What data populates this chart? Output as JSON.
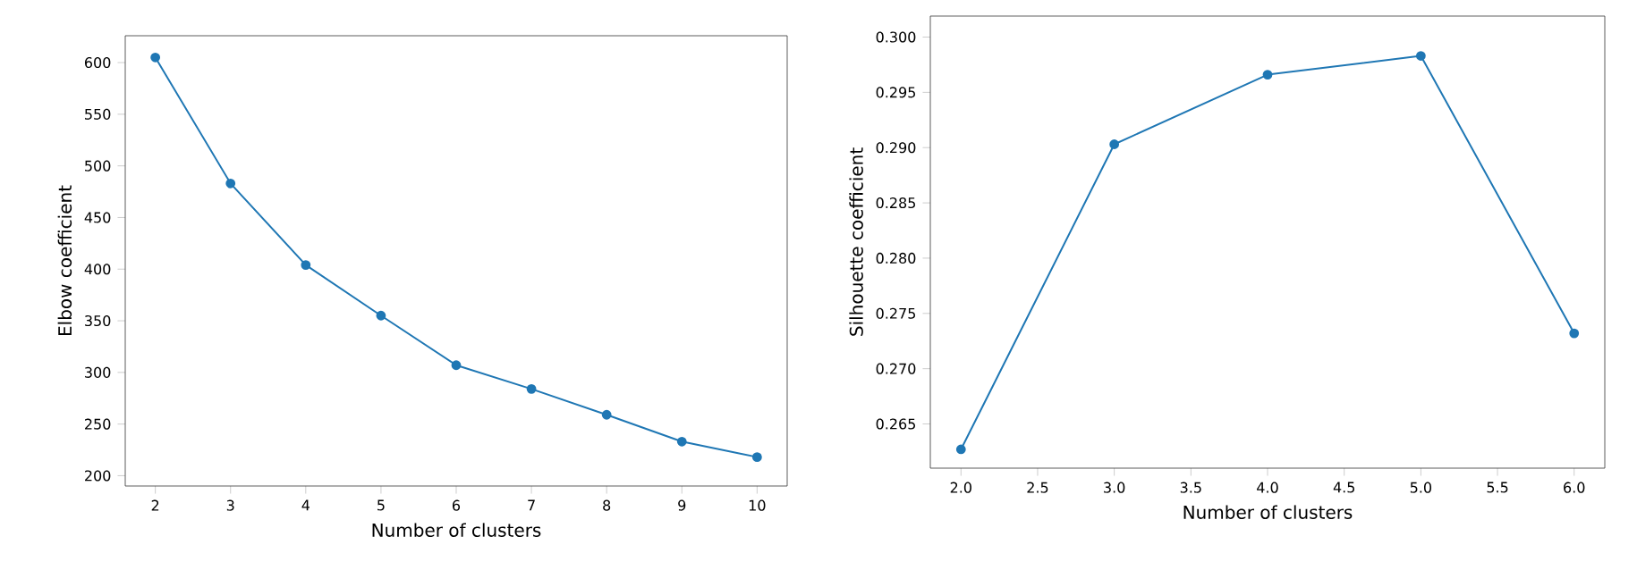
{
  "chart_data": [
    {
      "type": "line",
      "xlabel": "Number of clusters",
      "ylabel": "Elbow coefficient",
      "x": [
        2,
        3,
        4,
        5,
        6,
        7,
        8,
        9,
        10
      ],
      "series": [
        {
          "color": "#1f77b4",
          "values": [
            605,
            483,
            404,
            355,
            307,
            284,
            259,
            233,
            218
          ]
        }
      ],
      "xlim": [
        1.6,
        10.4
      ],
      "ylim": [
        190,
        626
      ],
      "xticks": [
        2,
        3,
        4,
        5,
        6,
        7,
        8,
        9,
        10
      ],
      "yticks": [
        200,
        250,
        300,
        350,
        400,
        450,
        500,
        550,
        600
      ],
      "marker": "circle",
      "line_style": "solid"
    },
    {
      "type": "line",
      "xlabel": "Number of clusters",
      "ylabel": "Silhouette coefficient",
      "x": [
        2,
        3,
        4,
        5,
        6
      ],
      "series": [
        {
          "color": "#1f77b4",
          "values": [
            0.2627,
            0.2903,
            0.2966,
            0.2983,
            0.2732
          ]
        }
      ],
      "xlim": [
        1.8,
        6.2
      ],
      "ylim": [
        0.261,
        0.3019
      ],
      "xticks": [
        {
          "value": 2,
          "label": "2.0"
        },
        {
          "value": 2.5,
          "label": "2.5"
        },
        {
          "value": 3,
          "label": "3.0"
        },
        {
          "value": 3.5,
          "label": "3.5"
        },
        {
          "value": 4,
          "label": "4.0"
        },
        {
          "value": 4.5,
          "label": "4.5"
        },
        {
          "value": 5,
          "label": "5.0"
        },
        {
          "value": 5.5,
          "label": "5.5"
        },
        {
          "value": 6,
          "label": "6.0"
        }
      ],
      "yticks": [
        0.265,
        {
          "value": 0.27,
          "label": "0.270"
        },
        0.275,
        {
          "value": 0.28,
          "label": "0.280"
        },
        0.285,
        {
          "value": 0.29,
          "label": "0.290"
        },
        0.295,
        {
          "value": 0.3,
          "label": "0.300"
        }
      ],
      "marker": "circle",
      "line_style": "solid"
    }
  ]
}
